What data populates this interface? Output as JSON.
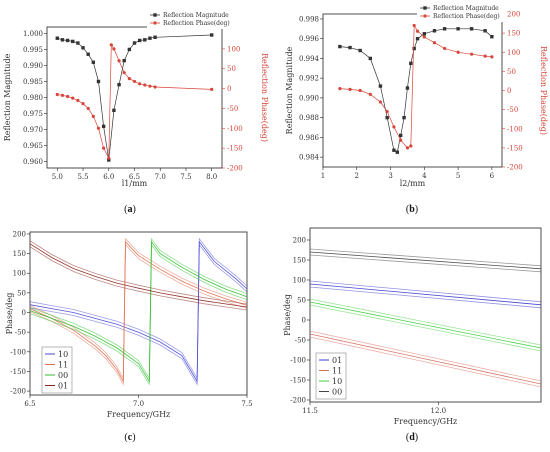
{
  "chart_data": [
    {
      "panel_label": "(a)",
      "type": "line",
      "xlabel": "l1/mm",
      "ylabel": "Reflection Magnitude",
      "y2label": "Reflection Phase(deg)",
      "xlim": [
        4.8,
        8.2
      ],
      "ylim": [
        0.958,
        1.002
      ],
      "y2lim": [
        -200,
        155
      ],
      "x_ticks": [
        "5.0",
        "5.5",
        "6.0",
        "6.5",
        "7.0",
        "7.5",
        "8.0"
      ],
      "y_ticks": [
        "0.960",
        "0.965",
        "0.970",
        "0.975",
        "0.980",
        "0.985",
        "0.990",
        "0.995",
        "1.000"
      ],
      "y2_ticks": [
        "-200",
        "-150",
        "-100",
        "-50",
        "0",
        "50",
        "100"
      ],
      "legend": [
        "Reflection Magnitude",
        "Reflection Phase(deg)"
      ],
      "legend_position": "top-right",
      "series": [
        {
          "name": "Reflection Magnitude",
          "axis": "left",
          "color": "#333333",
          "x": [
            5.0,
            5.1,
            5.2,
            5.3,
            5.4,
            5.5,
            5.6,
            5.7,
            5.8,
            5.9,
            6.0,
            6.1,
            6.2,
            6.3,
            6.4,
            6.5,
            6.6,
            6.7,
            6.8,
            6.9,
            8.0
          ],
          "y": [
            0.9985,
            0.998,
            0.9978,
            0.9975,
            0.997,
            0.9955,
            0.9935,
            0.991,
            0.985,
            0.971,
            0.9605,
            0.976,
            0.984,
            0.9915,
            0.995,
            0.997,
            0.9978,
            0.998,
            0.9985,
            0.9988,
            0.9995
          ]
        },
        {
          "name": "Reflection Phase(deg)",
          "axis": "right",
          "color": "#d8453a",
          "x": [
            5.0,
            5.1,
            5.2,
            5.3,
            5.4,
            5.5,
            5.6,
            5.7,
            5.8,
            5.9,
            6.0,
            6.05,
            6.1,
            6.2,
            6.3,
            6.4,
            6.5,
            6.6,
            6.7,
            6.8,
            6.9,
            8.0
          ],
          "y": [
            -15,
            -17,
            -20,
            -24,
            -30,
            -38,
            -50,
            -70,
            -100,
            -150,
            -175,
            110,
            100,
            70,
            40,
            25,
            18,
            12,
            9,
            6,
            4,
            -2
          ]
        }
      ]
    },
    {
      "panel_label": "(b)",
      "type": "line",
      "xlabel": "l2/mm",
      "ylabel": "Reflection Magnitude",
      "y2label": "Reflection Phase(deg)",
      "xlim": [
        1,
        6.3
      ],
      "ylim": [
        0.983,
        0.9985
      ],
      "y2lim": [
        -200,
        200
      ],
      "x_ticks": [
        "1",
        "2",
        "3",
        "4",
        "5",
        "6"
      ],
      "y_ticks": [
        "0.984",
        "0.986",
        "0.988",
        "0.990",
        "0.992",
        "0.994",
        "0.996",
        "0.998"
      ],
      "y2_ticks": [
        "-200",
        "-150",
        "-100",
        "-50",
        "0",
        "50",
        "100",
        "150",
        "200"
      ],
      "legend": [
        "Reflection Magnitude",
        "Reflection Phase(deg)"
      ],
      "legend_position": "top-right",
      "series": [
        {
          "name": "Reflection Magnitude",
          "axis": "left",
          "color": "#333333",
          "x": [
            1.5,
            1.8,
            2.1,
            2.4,
            2.7,
            2.9,
            3.1,
            3.2,
            3.3,
            3.4,
            3.5,
            3.6,
            3.7,
            3.8,
            4.0,
            4.3,
            4.6,
            5.0,
            5.4,
            5.8,
            6.0
          ],
          "y": [
            0.9952,
            0.9951,
            0.9948,
            0.994,
            0.9912,
            0.988,
            0.9847,
            0.9845,
            0.9862,
            0.988,
            0.991,
            0.9935,
            0.995,
            0.996,
            0.9965,
            0.9968,
            0.997,
            0.997,
            0.997,
            0.9968,
            0.9962
          ]
        },
        {
          "name": "Reflection Phase(deg)",
          "axis": "right",
          "color": "#d8453a",
          "x": [
            1.5,
            1.8,
            2.1,
            2.4,
            2.7,
            2.9,
            3.1,
            3.3,
            3.5,
            3.6,
            3.7,
            3.8,
            4.0,
            4.3,
            4.6,
            5.0,
            5.4,
            5.8,
            6.0
          ],
          "y": [
            5,
            3,
            0,
            -10,
            -30,
            -55,
            -95,
            -130,
            -150,
            -145,
            170,
            155,
            140,
            125,
            110,
            100,
            95,
            90,
            88
          ]
        }
      ]
    },
    {
      "panel_label": "(c)",
      "type": "line",
      "xlabel": "Frequency/GHz",
      "ylabel": "Phase/deg",
      "xlim": [
        6.5,
        7.5
      ],
      "ylim": [
        -210,
        205
      ],
      "x_ticks": [
        "6.5",
        "7.0",
        "7.5"
      ],
      "y_ticks": [
        "-200",
        "-150",
        "-100",
        "-50",
        "0",
        "50",
        "100",
        "150",
        "200"
      ],
      "legend": [
        "10",
        "11",
        "00",
        "01"
      ],
      "legend_position": "bottom-left",
      "series": [
        {
          "name": "10",
          "color": "#4a4ad8",
          "x": [
            6.5,
            6.6,
            6.7,
            6.8,
            6.9,
            7.0,
            7.1,
            7.2,
            7.27,
            7.28,
            7.35,
            7.45,
            7.5
          ],
          "y": [
            20,
            10,
            0,
            -15,
            -30,
            -50,
            -75,
            -110,
            -175,
            180,
            130,
            85,
            60
          ]
        },
        {
          "name": "11",
          "color": "#e07050",
          "x": [
            6.5,
            6.6,
            6.7,
            6.8,
            6.85,
            6.9,
            6.93,
            6.94,
            7.0,
            7.1,
            7.2,
            7.3,
            7.4,
            7.5
          ],
          "y": [
            10,
            -15,
            -45,
            -85,
            -110,
            -145,
            -175,
            180,
            145,
            110,
            80,
            55,
            35,
            18
          ]
        },
        {
          "name": "00",
          "color": "#30c030",
          "x": [
            6.5,
            6.6,
            6.7,
            6.8,
            6.9,
            7.0,
            7.05,
            7.06,
            7.1,
            7.2,
            7.3,
            7.4,
            7.5
          ],
          "y": [
            5,
            -15,
            -35,
            -60,
            -90,
            -130,
            -175,
            180,
            150,
            115,
            85,
            60,
            40
          ]
        },
        {
          "name": "01",
          "color": "#8b2a20",
          "x": [
            6.5,
            6.6,
            6.7,
            6.8,
            6.9,
            7.0,
            7.1,
            7.2,
            7.3,
            7.4,
            7.5
          ],
          "y": [
            175,
            140,
            112,
            92,
            75,
            62,
            50,
            40,
            30,
            22,
            14
          ]
        }
      ]
    },
    {
      "panel_label": "(d)",
      "type": "line",
      "xlabel": "Frequency/GHz",
      "ylabel": "Phase/deg",
      "xlim": [
        11.5,
        12.4
      ],
      "ylim": [
        -205,
        230
      ],
      "x_ticks": [
        "11.5",
        "12.0"
      ],
      "y_ticks": [
        "-200",
        "-150",
        "-100",
        "-50",
        "0",
        "50",
        "100",
        "150",
        "200"
      ],
      "legend": [
        "01",
        "11",
        "10",
        "00"
      ],
      "legend_position": "bottom-left",
      "series": [
        {
          "name": "01",
          "color": "#3a3ad0",
          "x": [
            11.5,
            12.4
          ],
          "y": [
            90,
            38
          ]
        },
        {
          "name": "11",
          "color": "#d87060",
          "x": [
            11.5,
            12.4
          ],
          "y": [
            -35,
            -160
          ]
        },
        {
          "name": "10",
          "color": "#40d040",
          "x": [
            11.5,
            12.4
          ],
          "y": [
            45,
            -70
          ]
        },
        {
          "name": "00",
          "color": "#444444",
          "x": [
            11.5,
            12.4
          ],
          "y": [
            170,
            128
          ]
        }
      ]
    }
  ]
}
